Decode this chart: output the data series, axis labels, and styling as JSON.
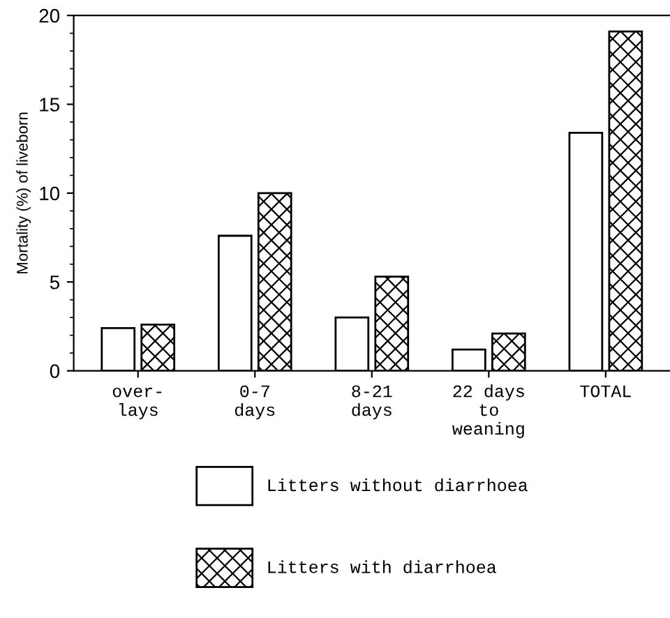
{
  "chart_data": {
    "type": "bar",
    "ylabel": "Mortality (%) of liveborn",
    "categories": [
      "over-\nlays",
      "0-7\ndays",
      "8-21\ndays",
      "22 days\nto\nweaning",
      "TOTAL"
    ],
    "series": [
      {
        "name": "Litters without diarrhoea",
        "color": "#ffffff",
        "values": [
          2.4,
          7.6,
          3.0,
          1.2,
          13.4
        ]
      },
      {
        "name": "Litters with diarrhoea",
        "color": "#000000",
        "values": [
          2.6,
          10.0,
          5.3,
          2.1,
          19.1
        ]
      }
    ],
    "ylim": [
      0,
      20
    ],
    "yticks": [
      0,
      5,
      10,
      15,
      20
    ],
    "grid": false,
    "legend": "bottom"
  }
}
